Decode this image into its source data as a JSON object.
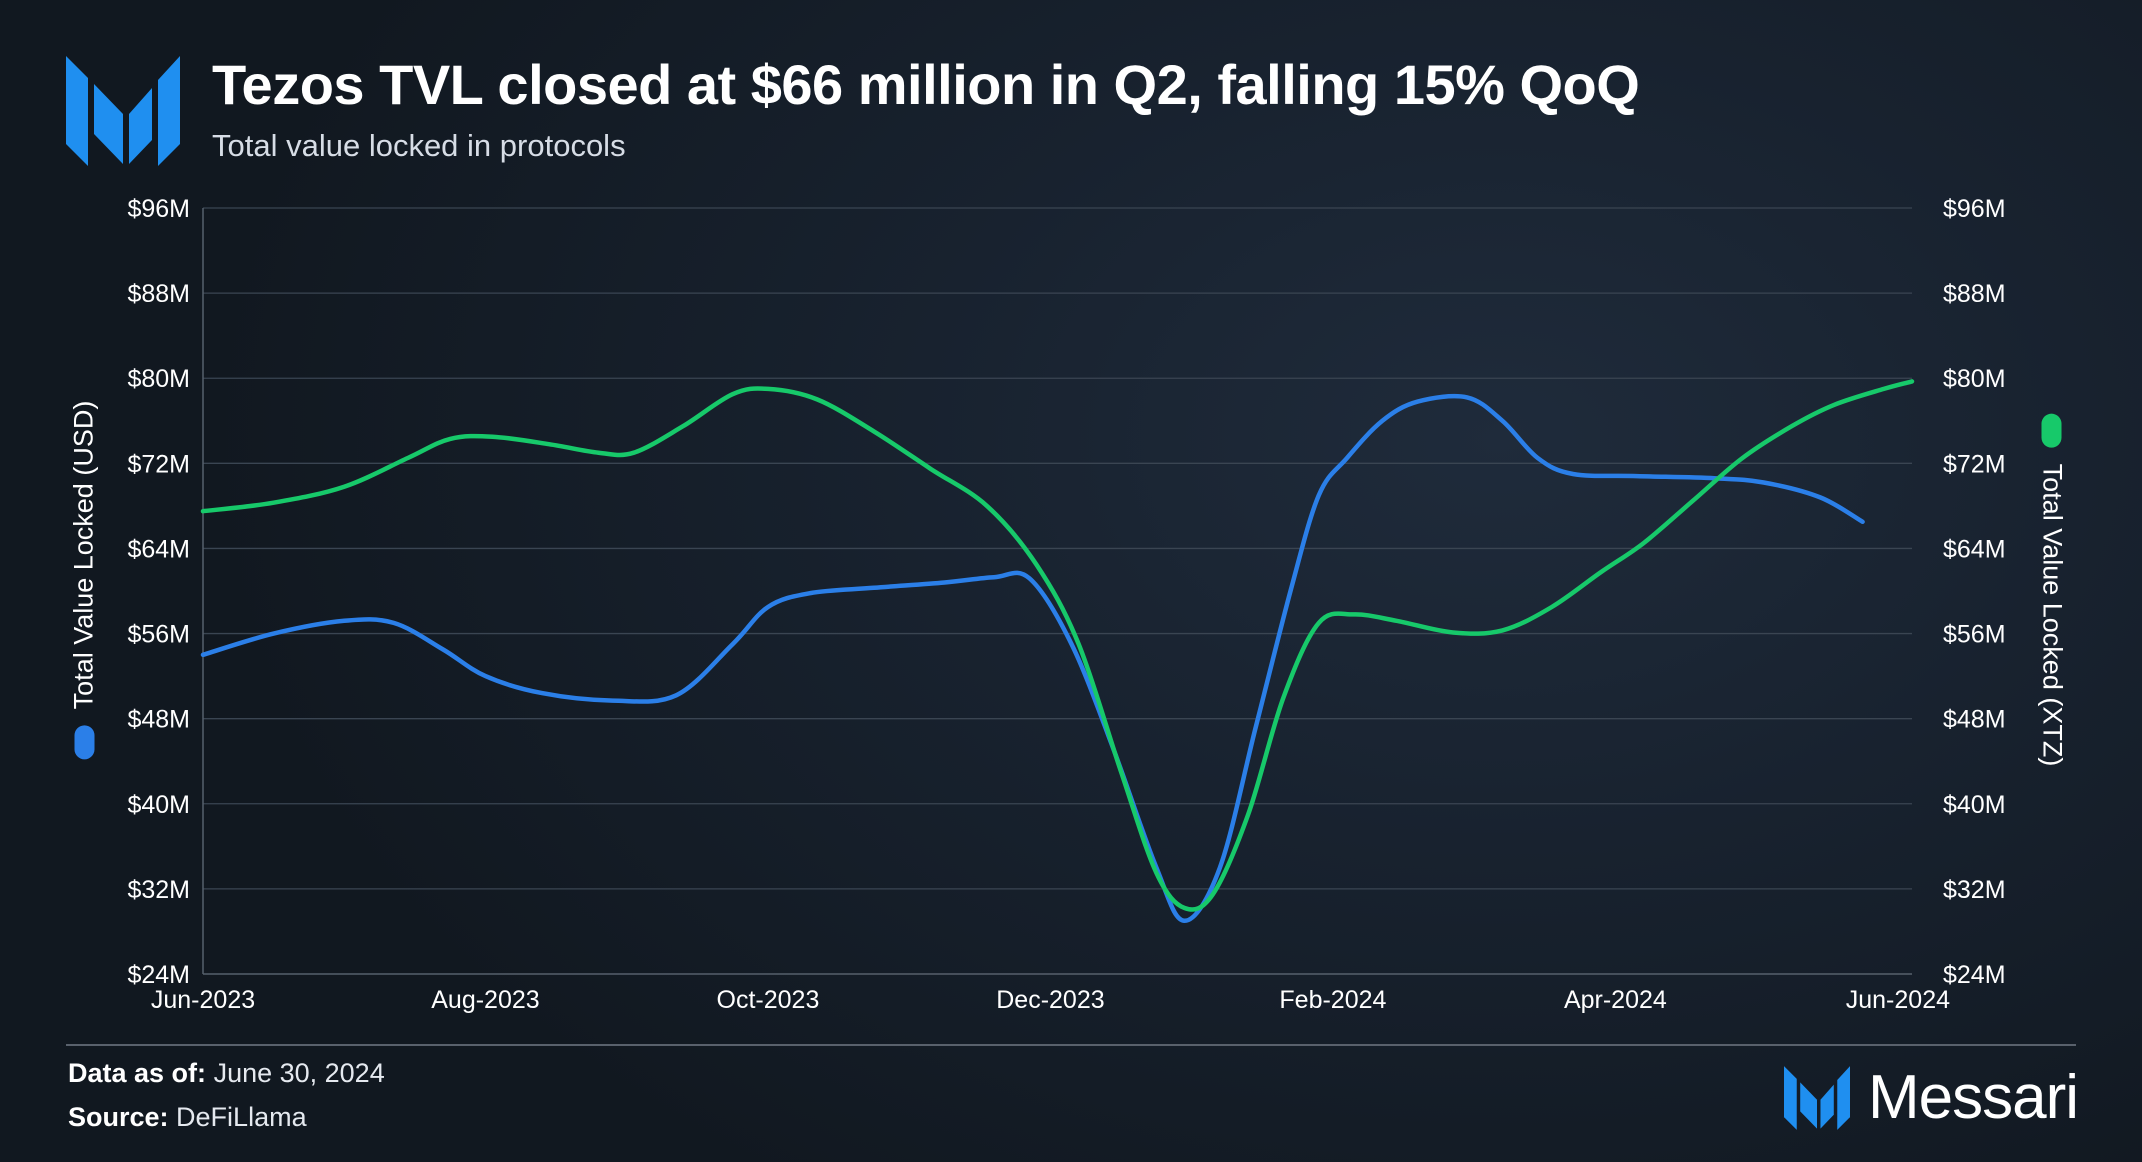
{
  "header": {
    "title": "Tezos TVL closed at $66 million in Q2, falling 15% QoQ",
    "subtitle": "Total value locked in protocols",
    "logo_icon": "messari-m-logo-icon"
  },
  "chart_data": {
    "type": "line",
    "title": "Tezos TVL closed at $66 million in Q2, falling 15% QoQ",
    "subtitle": "Total value locked in protocols",
    "x_labels": [
      "Jun-2023",
      "Aug-2023",
      "Oct-2023",
      "Dec-2023",
      "Feb-2024",
      "Apr-2024",
      "Jun-2024"
    ],
    "y_left": {
      "label": "Total Value Locked (USD)",
      "ticks": [
        "$24M",
        "$32M",
        "$40M",
        "$48M",
        "$56M",
        "$64M",
        "$72M",
        "$80M",
        "$88M",
        "$96M"
      ],
      "ylim": [
        24,
        96
      ],
      "unit": "$M"
    },
    "y_right": {
      "label": "Total Value Locked (XTZ)",
      "ticks": [
        "$24M",
        "$32M",
        "$40M",
        "$48M",
        "$56M",
        "$64M",
        "$72M",
        "$80M",
        "$88M",
        "$96M"
      ],
      "ylim": [
        24,
        96
      ],
      "unit": "$M"
    },
    "x_range_months": [
      0,
      12.1
    ],
    "grid": true,
    "series": [
      {
        "name": "Total Value Locked (USD)",
        "axis": "left",
        "color": "#2b7fe8",
        "points": [
          [
            0.0,
            54.0
          ],
          [
            0.5,
            56.0
          ],
          [
            1.0,
            57.2
          ],
          [
            1.35,
            57.0
          ],
          [
            1.7,
            54.5
          ],
          [
            2.0,
            52.0
          ],
          [
            2.4,
            50.4
          ],
          [
            2.9,
            49.7
          ],
          [
            3.35,
            50.2
          ],
          [
            3.75,
            55.0
          ],
          [
            4.0,
            58.5
          ],
          [
            4.3,
            59.8
          ],
          [
            4.75,
            60.3
          ],
          [
            5.25,
            60.8
          ],
          [
            5.6,
            61.3
          ],
          [
            5.85,
            61.2
          ],
          [
            6.15,
            55.0
          ],
          [
            6.45,
            45.0
          ],
          [
            6.75,
            34.0
          ],
          [
            6.95,
            29.0
          ],
          [
            7.2,
            34.0
          ],
          [
            7.45,
            47.0
          ],
          [
            7.7,
            60.0
          ],
          [
            7.9,
            69.0
          ],
          [
            8.1,
            72.5
          ],
          [
            8.35,
            76.0
          ],
          [
            8.6,
            77.8
          ],
          [
            8.95,
            78.2
          ],
          [
            9.2,
            76.0
          ],
          [
            9.45,
            72.5
          ],
          [
            9.7,
            71.0
          ],
          [
            10.15,
            70.8
          ],
          [
            10.7,
            70.6
          ],
          [
            11.05,
            70.2
          ],
          [
            11.45,
            68.8
          ],
          [
            11.75,
            66.5
          ]
        ]
      },
      {
        "name": "Total Value Locked (XTZ)",
        "axis": "right",
        "color": "#17c96a",
        "points": [
          [
            0.0,
            67.5
          ],
          [
            0.5,
            68.3
          ],
          [
            1.0,
            69.8
          ],
          [
            1.45,
            72.5
          ],
          [
            1.75,
            74.3
          ],
          [
            2.05,
            74.5
          ],
          [
            2.45,
            73.8
          ],
          [
            2.8,
            73.0
          ],
          [
            3.05,
            73.0
          ],
          [
            3.4,
            75.5
          ],
          [
            3.75,
            78.5
          ],
          [
            4.0,
            79.0
          ],
          [
            4.35,
            78.0
          ],
          [
            4.75,
            75.0
          ],
          [
            5.15,
            71.5
          ],
          [
            5.55,
            68.0
          ],
          [
            5.9,
            62.5
          ],
          [
            6.2,
            55.0
          ],
          [
            6.5,
            43.0
          ],
          [
            6.75,
            33.5
          ],
          [
            6.95,
            30.2
          ],
          [
            7.15,
            31.5
          ],
          [
            7.4,
            39.0
          ],
          [
            7.65,
            50.0
          ],
          [
            7.9,
            57.0
          ],
          [
            8.15,
            57.8
          ],
          [
            8.45,
            57.2
          ],
          [
            8.85,
            56.1
          ],
          [
            9.2,
            56.3
          ],
          [
            9.55,
            58.5
          ],
          [
            9.9,
            61.8
          ],
          [
            10.2,
            64.5
          ],
          [
            10.55,
            68.5
          ],
          [
            10.9,
            72.5
          ],
          [
            11.25,
            75.5
          ],
          [
            11.55,
            77.5
          ],
          [
            11.9,
            79.0
          ],
          [
            12.1,
            79.7
          ]
        ]
      }
    ]
  },
  "footer": {
    "data_as_of_label": "Data as of:",
    "data_as_of_value": "June 30, 2024",
    "source_label": "Source:",
    "source_value": "DeFiLlama"
  },
  "brand": {
    "name": "Messari",
    "icon": "messari-m-logo-icon",
    "accent_color": "#1f8ff0"
  }
}
